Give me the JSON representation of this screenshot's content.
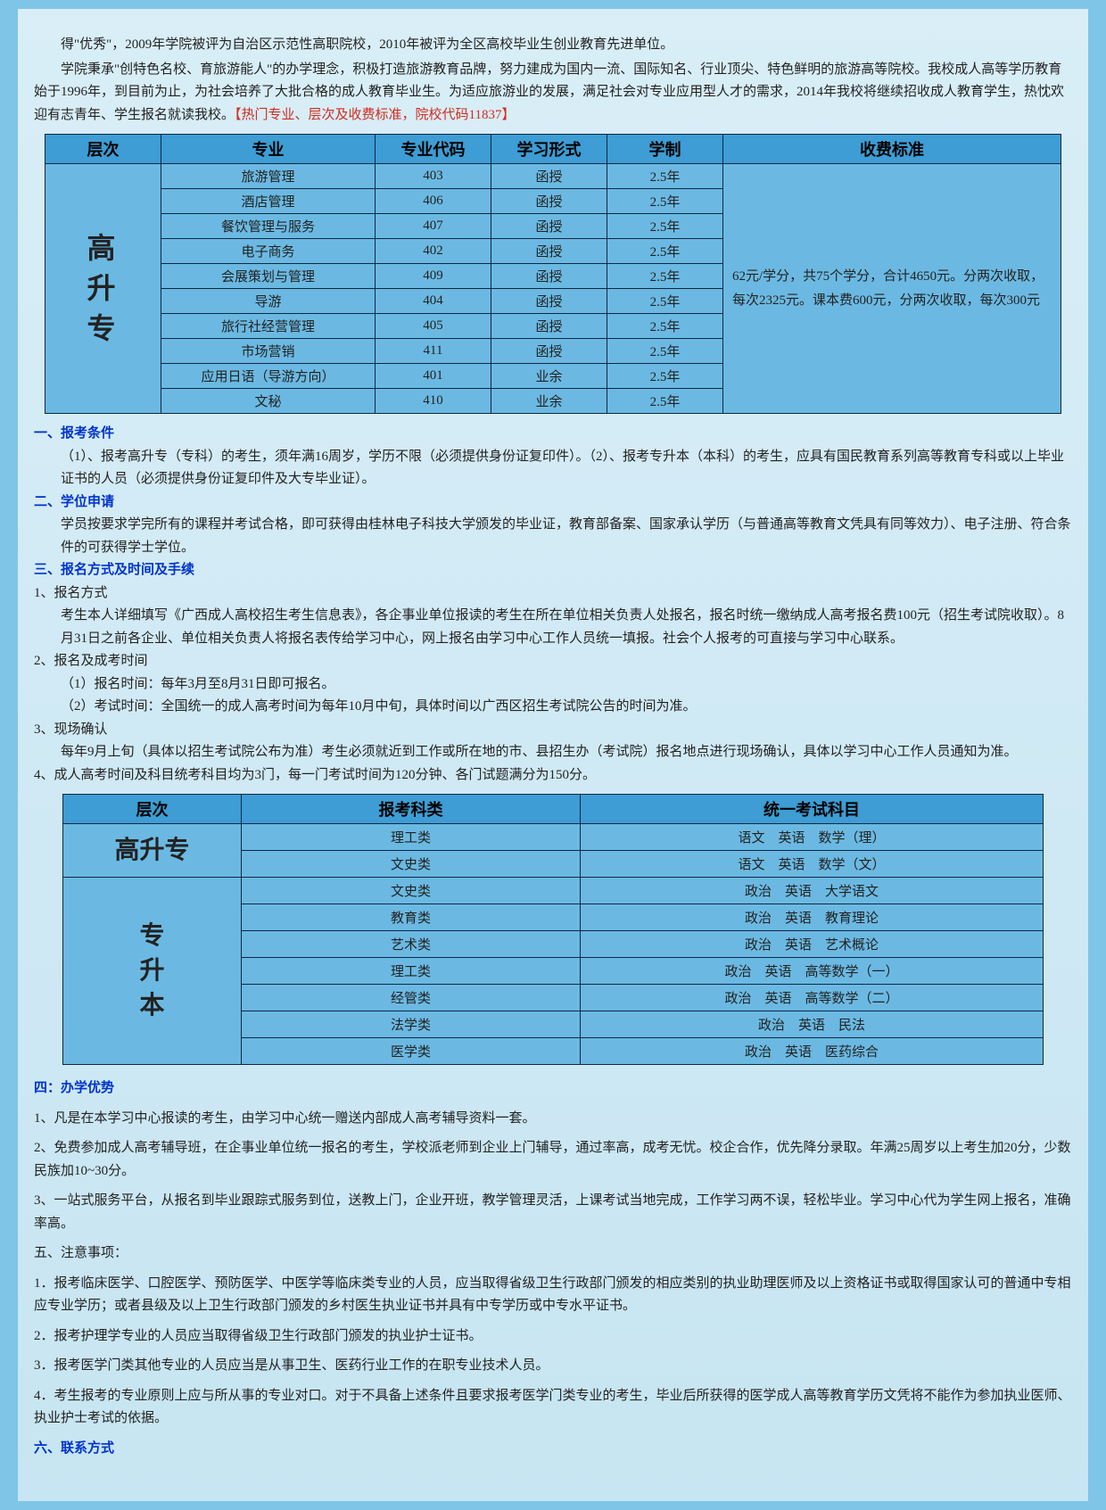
{
  "intro": {
    "p1": "得\"优秀\"，2009年学院被评为自治区示范性高职院校，2010年被评为全区高校毕业生创业教育先进单位。",
    "p2": "学院秉承\"创特色名校、育旅游能人\"的办学理念，积极打造旅游教育品牌，努力建成为国内一流、国际知名、行业顶尖、特色鲜明的旅游高等院校。我校成人高等学历教育始于1996年，到目前为止，为社会培养了大批合格的成人教育毕业生。为适应旅游业的发展，满足社会对专业应用型人才的需求，2014年我校将继续招收成人教育学生，热忱欢迎有志青年、学生报名就读我校。",
    "p2_red": "【热门专业、层次及收费标准，院校代码11837】"
  },
  "table1": {
    "headers": [
      "层次",
      "专业",
      "专业代码",
      "学习形式",
      "学制",
      "收费标准"
    ],
    "level": "高升专",
    "rows": [
      [
        "旅游管理",
        "403",
        "函授",
        "2.5年"
      ],
      [
        "酒店管理",
        "406",
        "函授",
        "2.5年"
      ],
      [
        "餐饮管理与服务",
        "407",
        "函授",
        "2.5年"
      ],
      [
        "电子商务",
        "402",
        "函授",
        "2.5年"
      ],
      [
        "会展策划与管理",
        "409",
        "函授",
        "2.5年"
      ],
      [
        "导游",
        "404",
        "函授",
        "2.5年"
      ],
      [
        "旅行社经营管理",
        "405",
        "函授",
        "2.5年"
      ],
      [
        "市场营销",
        "411",
        "函授",
        "2.5年"
      ],
      [
        "应用日语（导游方向）",
        "401",
        "业余",
        "2.5年"
      ],
      [
        "文秘",
        "410",
        "业余",
        "2.5年"
      ]
    ],
    "fee": "62元/学分，共75个学分，合计4650元。分两次收取，每次2325元。课本费600元，分两次收取，每次300元"
  },
  "cond": {
    "h1": "一、报考条件",
    "t1": "（1）、报考高升专（专科）的考生，须年满16周岁，学历不限（必须提供身份证复印件）。（2）、报考专升本（本科）的考生，应具有国民教育系列高等教育专科或以上毕业证书的人员（必须提供身份证复印件及大专毕业证）。",
    "h2": "二、学位申请",
    "t2": "学员按要求学完所有的课程并考试合格，即可获得由桂林电子科技大学颁发的毕业证，教育部备案、国家承认学历（与普通高等教育文凭具有同等效力）、电子注册、符合条件的可获得学士学位。",
    "h3": "三、报名方式及时间及手续",
    "m1_label": "1、报名方式",
    "m1": "考生本人详细填写《广西成人高校招生考生信息表》，各企事业单位报读的考生在所在单位相关负责人处报名，报名时统一缴纳成人高考报名费100元（招生考试院收取）。8月31日之前各企业、单位相关负责人将报名表传给学习中心，网上报名由学习中心工作人员统一填报。社会个人报考的可直接与学习中心联系。",
    "m2_label": "2、报名及成考时间",
    "m2a": "（1）报名时间：每年3月至8月31日即可报名。",
    "m2b": "（2）考试时间：全国统一的成人高考时间为每年10月中旬，具体时间以广西区招生考试院公告的时间为准。",
    "m3_label": "3、现场确认",
    "m3": "每年9月上旬（具体以招生考试院公布为准）考生必须就近到工作或所在地的市、县招生办（考试院）报名地点进行现场确认，具体以学习中心工作人员通知为准。",
    "m4": "4、成人高考时间及科目统考科目均为3门，每一门考试时间为120分钟、各门试题满分为150分。"
  },
  "table2": {
    "headers": [
      "层次",
      "报考科类",
      "统一考试科目"
    ],
    "groups": [
      {
        "level": "高升专",
        "rows": [
          [
            "理工类",
            "语文　英语　数学（理）"
          ],
          [
            "文史类",
            "语文　英语　数学（文）"
          ]
        ]
      },
      {
        "level": "专升本",
        "rows": [
          [
            "文史类",
            "政治　英语　大学语文"
          ],
          [
            "教育类",
            "政治　英语　教育理论"
          ],
          [
            "艺术类",
            "政治　英语　艺术概论"
          ],
          [
            "理工类",
            "政治　英语　高等数学（一）"
          ],
          [
            "经管类",
            "政治　英语　高等数学（二）"
          ],
          [
            "法学类",
            "政治　英语　民法"
          ],
          [
            "医学类",
            "政治　英语　医药综合"
          ]
        ]
      }
    ]
  },
  "adv": {
    "h": "四：办学优势",
    "items": [
      "1、凡是在本学习中心报读的考生，由学习中心统一赠送内部成人高考辅导资料一套。",
      "2、免费参加成人高考辅导班，在企事业单位统一报名的考生，学校派老师到企业上门辅导，通过率高，成考无忧。校企合作，优先降分录取。年满25周岁以上考生加20分，少数民族加10~30分。",
      "3、一站式服务平台，从报名到毕业跟踪式服务到位，送教上门，企业开班，教学管理灵活，上课考试当地完成，工作学习两不误，轻松毕业。学习中心代为学生网上报名，准确率高。"
    ]
  },
  "note": {
    "h": "五、注意事项：",
    "items": [
      "1．报考临床医学、口腔医学、预防医学、中医学等临床类专业的人员，应当取得省级卫生行政部门颁发的相应类别的执业助理医师及以上资格证书或取得国家认可的普通中专相应专业学历；或者县级及以上卫生行政部门颁发的乡村医生执业证书并具有中专学历或中专水平证书。",
      "2．报考护理学专业的人员应当取得省级卫生行政部门颁发的执业护士证书。",
      "3．报考医学门类其他专业的人员应当是从事卫生、医药行业工作的在职专业技术人员。",
      "4．考生报考的专业原则上应与所从事的专业对口。对于不具备上述条件且要求报考医学门类专业的考生，毕业后所获得的医学成人高等教育学历文凭将不能作为参加执业医师、执业护士考试的依据。"
    ]
  },
  "contact": {
    "h": "六、联系方式"
  },
  "colors": {
    "page_bg": "#7ec5e8",
    "inner_bg_top": "#d9eef7",
    "inner_bg_bottom": "#c7e5f2",
    "header_bg": "#3d9dd4",
    "cell_bg": "#6bb9e2",
    "border": "#102844",
    "red": "#d62a1e",
    "blue": "#0033cc"
  }
}
